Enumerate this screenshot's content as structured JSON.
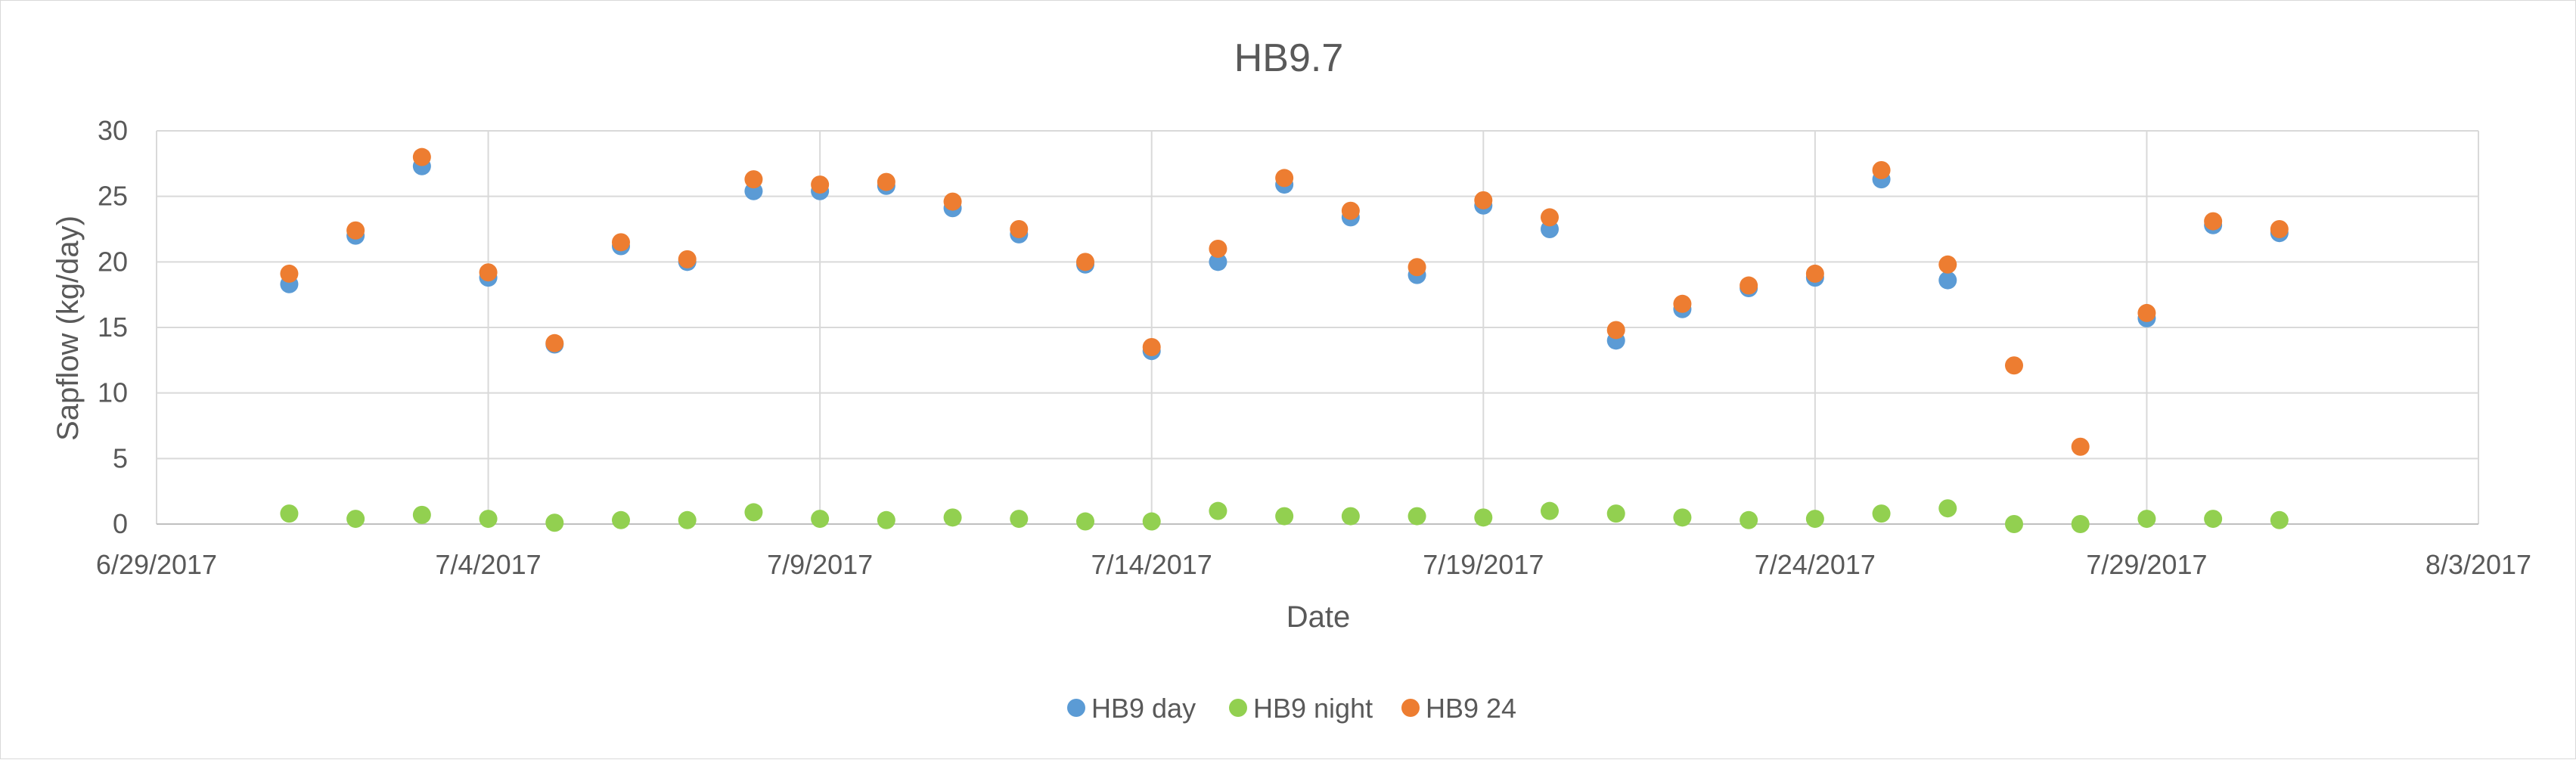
{
  "chart_data": {
    "type": "scatter",
    "title": "HB9.7",
    "xlabel": "Date",
    "ylabel": "Sapflow (kg/day)",
    "x_axis": {
      "min": "2017-06-29",
      "max": "2017-08-03",
      "ticks": [
        "2017-06-29",
        "2017-07-04",
        "2017-07-09",
        "2017-07-14",
        "2017-07-19",
        "2017-07-24",
        "2017-07-29",
        "2017-08-03"
      ],
      "tick_labels": [
        "6/29/2017",
        "7/4/2017",
        "7/9/2017",
        "7/14/2017",
        "7/19/2017",
        "7/24/2017",
        "7/29/2017",
        "8/3/2017"
      ]
    },
    "y_axis": {
      "min": 0,
      "max": 30,
      "ticks": [
        0,
        5,
        10,
        15,
        20,
        25,
        30
      ],
      "tick_labels": [
        "0",
        "5",
        "10",
        "15",
        "20",
        "25",
        "30"
      ]
    },
    "grid": true,
    "legend_position": "bottom",
    "x": [
      "2017-07-01",
      "2017-07-02",
      "2017-07-03",
      "2017-07-04",
      "2017-07-05",
      "2017-07-06",
      "2017-07-07",
      "2017-07-08",
      "2017-07-09",
      "2017-07-10",
      "2017-07-11",
      "2017-07-12",
      "2017-07-13",
      "2017-07-14",
      "2017-07-15",
      "2017-07-16",
      "2017-07-17",
      "2017-07-18",
      "2017-07-19",
      "2017-07-20",
      "2017-07-21",
      "2017-07-22",
      "2017-07-23",
      "2017-07-24",
      "2017-07-25",
      "2017-07-26",
      "2017-07-27",
      "2017-07-28",
      "2017-07-29",
      "2017-07-30",
      "2017-07-31"
    ],
    "series": [
      {
        "name": "HB9 day",
        "color": "#5b9bd5",
        "values": [
          18.3,
          22.0,
          27.3,
          18.8,
          13.7,
          21.2,
          20.0,
          25.4,
          25.4,
          25.8,
          24.1,
          22.1,
          19.8,
          13.2,
          20.0,
          25.9,
          23.4,
          19.0,
          24.3,
          22.5,
          14.0,
          16.4,
          18.0,
          18.8,
          26.3,
          18.6,
          null,
          null,
          15.7,
          22.8,
          22.2
        ]
      },
      {
        "name": "HB9 night",
        "color": "#92d050",
        "values": [
          0.8,
          0.4,
          0.7,
          0.4,
          0.1,
          0.3,
          0.3,
          0.9,
          0.4,
          0.3,
          0.5,
          0.4,
          0.2,
          0.2,
          1.0,
          0.6,
          0.6,
          0.6,
          0.5,
          1.0,
          0.8,
          0.5,
          0.3,
          0.4,
          0.8,
          1.2,
          0.0,
          0.0,
          0.4,
          0.4,
          0.3
        ]
      },
      {
        "name": "HB9 24",
        "color": "#ed7d31",
        "values": [
          19.1,
          22.4,
          28.0,
          19.2,
          13.8,
          21.5,
          20.2,
          26.3,
          25.9,
          26.1,
          24.6,
          22.5,
          20.0,
          13.5,
          21.0,
          26.4,
          23.9,
          19.6,
          24.7,
          23.4,
          14.8,
          16.8,
          18.2,
          19.1,
          27.0,
          19.8,
          12.1,
          5.9,
          16.1,
          23.1,
          22.5
        ]
      }
    ]
  }
}
